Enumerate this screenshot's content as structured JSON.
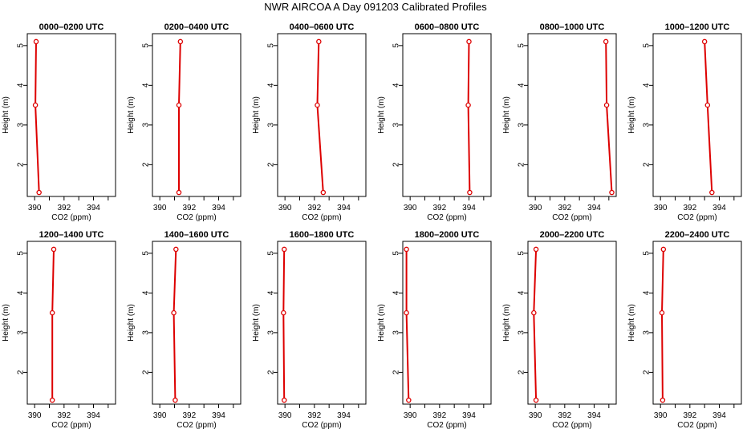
{
  "title": "NWR AIRCOA A  Day 091203  Calibrated Profiles",
  "colors": {
    "profile": "#dd0000",
    "frame": "#000000"
  },
  "chart_data": [
    {
      "type": "line",
      "title": "0000–0200 UTC",
      "xlabel": "CO2 (ppm)",
      "ylabel": "Height (m)",
      "xlim": [
        389.5,
        395.5
      ],
      "ylim": [
        1.2,
        5.3
      ],
      "xticks": [
        "390",
        "392",
        "394"
      ],
      "yticks": [
        "2",
        "3",
        "4",
        "5"
      ],
      "x": [
        390.1,
        390.05,
        390.3
      ],
      "y": [
        5.1,
        3.5,
        1.3
      ]
    },
    {
      "type": "line",
      "title": "0200–0400 UTC",
      "xlabel": "CO2 (ppm)",
      "ylabel": "Height (m)",
      "xlim": [
        389.5,
        395.5
      ],
      "ylim": [
        1.2,
        5.3
      ],
      "xticks": [
        "390",
        "392",
        "394"
      ],
      "yticks": [
        "2",
        "3",
        "4",
        "5"
      ],
      "x": [
        391.4,
        391.3,
        391.3
      ],
      "y": [
        5.1,
        3.5,
        1.3
      ]
    },
    {
      "type": "line",
      "title": "0400–0600 UTC",
      "xlabel": "CO2 (ppm)",
      "ylabel": "Height (m)",
      "xlim": [
        389.5,
        395.5
      ],
      "ylim": [
        1.2,
        5.3
      ],
      "xticks": [
        "390",
        "392",
        "394"
      ],
      "yticks": [
        "2",
        "3",
        "4",
        "5"
      ],
      "x": [
        392.3,
        392.2,
        392.6
      ],
      "y": [
        5.1,
        3.5,
        1.3
      ]
    },
    {
      "type": "line",
      "title": "0600–0800 UTC",
      "xlabel": "CO2 (ppm)",
      "ylabel": "Height (m)",
      "xlim": [
        389.5,
        395.5
      ],
      "ylim": [
        1.2,
        5.3
      ],
      "xticks": [
        "390",
        "392",
        "394"
      ],
      "yticks": [
        "2",
        "3",
        "4",
        "5"
      ],
      "x": [
        394.0,
        393.95,
        394.05
      ],
      "y": [
        5.1,
        3.5,
        1.3
      ]
    },
    {
      "type": "line",
      "title": "0800–1000 UTC",
      "xlabel": "CO2 (ppm)",
      "ylabel": "Height (m)",
      "xlim": [
        389.5,
        395.5
      ],
      "ylim": [
        1.2,
        5.3
      ],
      "xticks": [
        "390",
        "392",
        "394"
      ],
      "yticks": [
        "2",
        "3",
        "4",
        "5"
      ],
      "x": [
        394.8,
        394.85,
        395.2
      ],
      "y": [
        5.1,
        3.5,
        1.3
      ]
    },
    {
      "type": "line",
      "title": "1000–1200 UTC",
      "xlabel": "CO2 (ppm)",
      "ylabel": "Height (m)",
      "xlim": [
        389.5,
        395.5
      ],
      "ylim": [
        1.2,
        5.3
      ],
      "xticks": [
        "390",
        "392",
        "394"
      ],
      "yticks": [
        "2",
        "3",
        "4",
        "5"
      ],
      "x": [
        393.0,
        393.2,
        393.5
      ],
      "y": [
        5.1,
        3.5,
        1.3
      ]
    },
    {
      "type": "line",
      "title": "1200–1400 UTC",
      "xlabel": "CO2 (ppm)",
      "ylabel": "Height (m)",
      "xlim": [
        389.5,
        395.5
      ],
      "ylim": [
        1.2,
        5.3
      ],
      "xticks": [
        "390",
        "392",
        "394"
      ],
      "yticks": [
        "2",
        "3",
        "4",
        "5"
      ],
      "x": [
        391.3,
        391.2,
        391.2
      ],
      "y": [
        5.1,
        3.5,
        1.3
      ]
    },
    {
      "type": "line",
      "title": "1400–1600 UTC",
      "xlabel": "CO2 (ppm)",
      "ylabel": "Height (m)",
      "xlim": [
        389.5,
        395.5
      ],
      "ylim": [
        1.2,
        5.3
      ],
      "xticks": [
        "390",
        "392",
        "394"
      ],
      "yticks": [
        "2",
        "3",
        "4",
        "5"
      ],
      "x": [
        391.1,
        390.95,
        391.05
      ],
      "y": [
        5.1,
        3.5,
        1.3
      ]
    },
    {
      "type": "line",
      "title": "1600–1800 UTC",
      "xlabel": "CO2 (ppm)",
      "ylabel": "Height (m)",
      "xlim": [
        389.5,
        395.5
      ],
      "ylim": [
        1.2,
        5.3
      ],
      "xticks": [
        "390",
        "392",
        "394"
      ],
      "yticks": [
        "2",
        "3",
        "4",
        "5"
      ],
      "x": [
        389.95,
        389.9,
        389.95
      ],
      "y": [
        5.1,
        3.5,
        1.3
      ]
    },
    {
      "type": "line",
      "title": "1800–2000 UTC",
      "xlabel": "CO2 (ppm)",
      "ylabel": "Height (m)",
      "xlim": [
        389.5,
        395.5
      ],
      "ylim": [
        1.2,
        5.3
      ],
      "xticks": [
        "390",
        "392",
        "394"
      ],
      "yticks": [
        "2",
        "3",
        "4",
        "5"
      ],
      "x": [
        389.75,
        389.75,
        389.9
      ],
      "y": [
        5.1,
        3.5,
        1.3
      ]
    },
    {
      "type": "line",
      "title": "2000–2200 UTC",
      "xlabel": "CO2 (ppm)",
      "ylabel": "Height (m)",
      "xlim": [
        389.5,
        395.5
      ],
      "ylim": [
        1.2,
        5.3
      ],
      "xticks": [
        "390",
        "392",
        "394"
      ],
      "yticks": [
        "2",
        "3",
        "4",
        "5"
      ],
      "x": [
        390.05,
        389.9,
        390.05
      ],
      "y": [
        5.1,
        3.5,
        1.3
      ]
    },
    {
      "type": "line",
      "title": "2200–2400 UTC",
      "xlabel": "CO2 (ppm)",
      "ylabel": "Height (m)",
      "xlim": [
        389.5,
        395.5
      ],
      "ylim": [
        1.2,
        5.3
      ],
      "xticks": [
        "390",
        "392",
        "394"
      ],
      "yticks": [
        "2",
        "3",
        "4",
        "5"
      ],
      "x": [
        390.2,
        390.1,
        390.15
      ],
      "y": [
        5.1,
        3.5,
        1.3
      ]
    }
  ]
}
